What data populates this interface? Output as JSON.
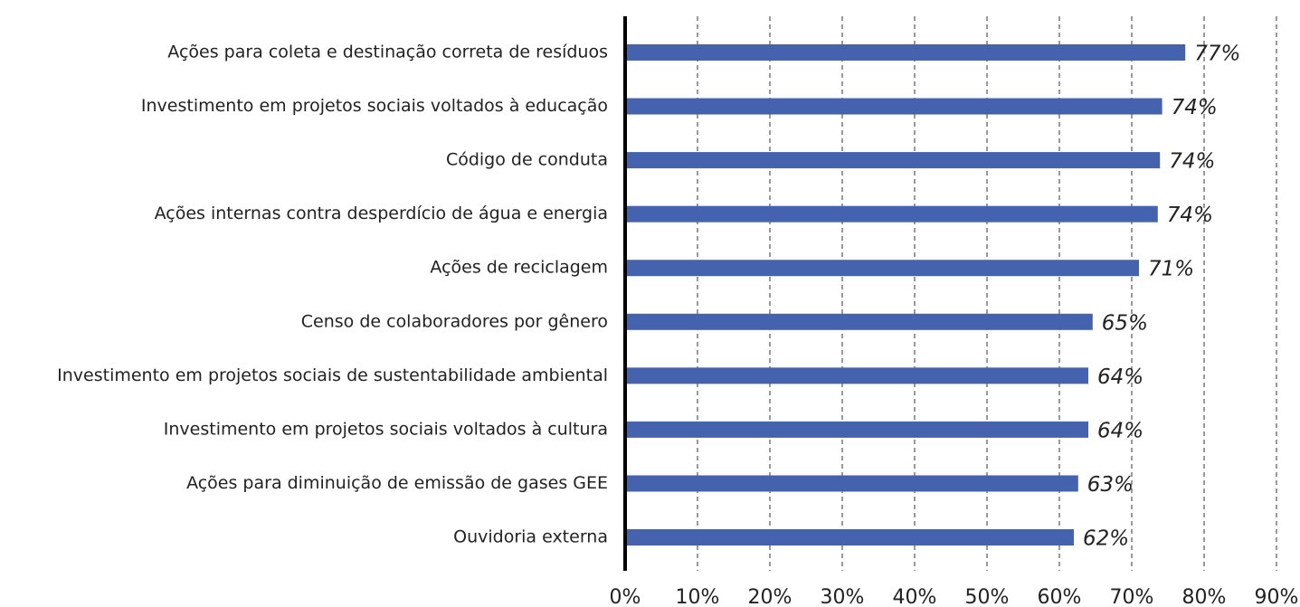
{
  "chart_data": {
    "type": "bar",
    "orientation": "horizontal",
    "categories": [
      "Ações para coleta e destinação correta de resíduos",
      "Investimento em projetos sociais voltados à educação",
      "Código de conduta",
      "Ações internas contra desperdício de água e energia",
      "Ações de reciclagem",
      "Censo de colaboradores por gênero",
      "Investimento em projetos sociais de sustentabilidade ambiental",
      "Investimento em projetos sociais voltados à cultura",
      "Ações para diminuição de emissão de gases GEE",
      "Ouvidoria externa"
    ],
    "values": [
      77.4,
      74.2,
      73.9,
      73.6,
      71,
      64.6,
      64,
      64,
      62.6,
      62
    ],
    "value_labels": [
      "77%",
      "74%",
      "74%",
      "74%",
      "71%",
      "65%",
      "64%",
      "64%",
      "63%",
      "62%"
    ],
    "color": "#4462ad",
    "xlim": [
      0,
      90
    ],
    "xticks": [
      {
        "value": 0,
        "label": "0%"
      },
      {
        "value": 10,
        "label": "10%"
      },
      {
        "value": 20,
        "label": "20%"
      },
      {
        "value": 30,
        "label": "30%"
      },
      {
        "value": 40,
        "label": "40%"
      },
      {
        "value": 50,
        "label": "50%"
      },
      {
        "value": 60,
        "label": "60%"
      },
      {
        "value": 70,
        "label": "70%"
      },
      {
        "value": 80,
        "label": "80%"
      },
      {
        "value": 90,
        "label": "90%"
      }
    ],
    "grid": true
  }
}
